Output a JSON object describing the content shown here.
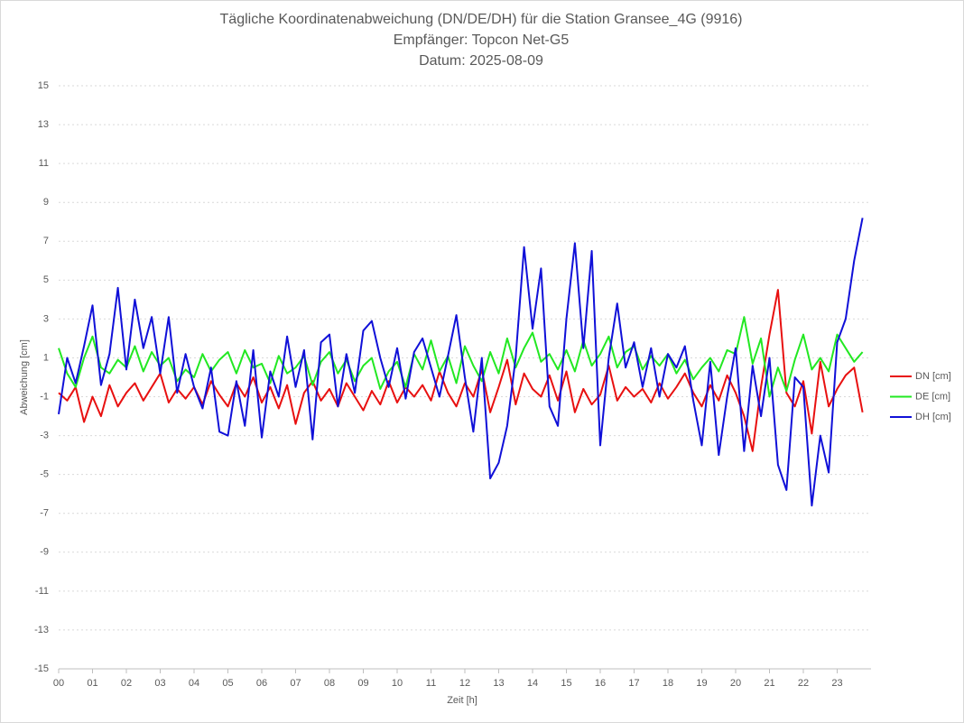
{
  "chart_data": {
    "type": "line",
    "title": "Tägliche Koordinatenabweichung (DN/DE/DH) für die Station Gransee_4G (9916)",
    "subtitle": [
      "Empfänger: Topcon Net-G5",
      "Datum: 2025-08-09"
    ],
    "xlabel": "Zeit [h]",
    "ylabel": "Abweichung [cm]",
    "x": [
      0,
      0.25,
      0.5,
      0.75,
      1,
      1.25,
      1.5,
      1.75,
      2,
      2.25,
      2.5,
      2.75,
      3,
      3.25,
      3.5,
      3.75,
      4,
      4.25,
      4.5,
      4.75,
      5,
      5.25,
      5.5,
      5.75,
      6,
      6.25,
      6.5,
      6.75,
      7,
      7.25,
      7.5,
      7.75,
      8,
      8.25,
      8.5,
      8.75,
      9,
      9.25,
      9.5,
      9.75,
      10,
      10.25,
      10.5,
      10.75,
      11,
      11.25,
      11.5,
      11.75,
      12,
      12.25,
      12.5,
      12.75,
      13,
      13.25,
      13.5,
      13.75,
      14,
      14.25,
      14.5,
      14.75,
      15,
      15.25,
      15.5,
      15.75,
      16,
      16.25,
      16.5,
      16.75,
      17,
      17.25,
      17.5,
      17.75,
      18,
      18.25,
      18.5,
      18.75,
      19,
      19.25,
      19.5,
      19.75,
      20,
      20.25,
      20.5,
      20.75,
      21,
      21.25,
      21.5,
      21.75,
      22,
      22.25,
      22.5,
      22.75,
      23,
      23.25,
      23.5,
      23.75
    ],
    "series": [
      {
        "name": "DN [cm]",
        "color": "#e81010",
        "values": [
          -0.8,
          -1.2,
          -0.5,
          -2.3,
          -1.0,
          -2.0,
          -0.4,
          -1.5,
          -0.8,
          -0.3,
          -1.2,
          -0.5,
          0.2,
          -1.3,
          -0.6,
          -1.1,
          -0.5,
          -1.4,
          -0.2,
          -0.9,
          -1.5,
          -0.3,
          -1.0,
          0.0,
          -1.3,
          -0.5,
          -1.6,
          -0.4,
          -2.4,
          -0.8,
          -0.2,
          -1.2,
          -0.6,
          -1.5,
          -0.3,
          -1.0,
          -1.7,
          -0.7,
          -1.4,
          -0.2,
          -1.3,
          -0.5,
          -1.0,
          -0.4,
          -1.2,
          0.3,
          -0.8,
          -1.5,
          -0.3,
          -1.0,
          0.4,
          -1.8,
          -0.5,
          0.9,
          -1.4,
          0.2,
          -0.6,
          -1.0,
          0.1,
          -1.2,
          0.3,
          -1.8,
          -0.6,
          -1.4,
          -0.9,
          0.6,
          -1.2,
          -0.5,
          -1.0,
          -0.6,
          -1.3,
          -0.3,
          -1.1,
          -0.5,
          0.2,
          -0.8,
          -1.5,
          -0.4,
          -1.2,
          0.1,
          -0.8,
          -2.0,
          -3.8,
          -0.5,
          2.2,
          4.5,
          -0.8,
          -1.5,
          -0.2,
          -2.9,
          0.8,
          -1.5,
          -0.6,
          0.1,
          0.5,
          -1.8
        ]
      },
      {
        "name": "DE [cm]",
        "color": "#22e822",
        "values": [
          1.5,
          0.2,
          -0.5,
          1.0,
          2.1,
          0.5,
          0.2,
          0.9,
          0.5,
          1.6,
          0.3,
          1.3,
          0.6,
          1.0,
          -0.2,
          0.4,
          0.0,
          1.2,
          0.3,
          0.9,
          1.3,
          0.2,
          1.4,
          0.5,
          0.7,
          -0.3,
          1.1,
          0.2,
          0.5,
          1.1,
          -0.4,
          0.8,
          1.3,
          0.2,
          0.9,
          -0.2,
          0.6,
          1.0,
          -0.6,
          0.3,
          0.8,
          -0.5,
          1.2,
          0.4,
          1.9,
          0.3,
          1.1,
          -0.3,
          1.6,
          0.6,
          -0.2,
          1.3,
          0.2,
          2.0,
          0.5,
          1.5,
          2.3,
          0.8,
          1.2,
          0.4,
          1.4,
          0.3,
          1.9,
          0.6,
          1.2,
          2.1,
          0.5,
          1.3,
          1.6,
          0.4,
          1.1,
          0.6,
          1.2,
          0.2,
          0.9,
          -0.1,
          0.5,
          1.0,
          0.3,
          1.4,
          1.2,
          3.1,
          0.7,
          2.0,
          -1.0,
          0.5,
          -0.7,
          0.9,
          2.2,
          0.4,
          1.0,
          0.3,
          2.2,
          1.5,
          0.8,
          1.3
        ]
      },
      {
        "name": "DH [cm]",
        "color": "#1010d8",
        "values": [
          -1.9,
          1.0,
          -0.3,
          1.6,
          3.7,
          -0.4,
          1.2,
          4.6,
          0.4,
          4.0,
          1.5,
          3.1,
          0.2,
          3.1,
          -0.8,
          1.2,
          -0.5,
          -1.6,
          0.5,
          -2.8,
          -3.0,
          -0.2,
          -2.5,
          1.4,
          -3.1,
          0.3,
          -1.0,
          2.1,
          -0.5,
          1.4,
          -3.2,
          1.8,
          2.2,
          -1.5,
          1.2,
          -0.8,
          2.4,
          2.9,
          1.0,
          -0.5,
          1.5,
          -1.1,
          1.3,
          2.0,
          0.5,
          -1.0,
          1.1,
          3.2,
          0.0,
          -2.8,
          1.0,
          -5.2,
          -4.4,
          -2.5,
          1.0,
          6.7,
          2.5,
          5.6,
          -1.5,
          -2.5,
          3.0,
          6.9,
          1.5,
          6.5,
          -3.5,
          1.0,
          3.8,
          0.5,
          1.8,
          -0.5,
          1.5,
          -1.0,
          1.2,
          0.5,
          1.6,
          -1.2,
          -3.5,
          0.8,
          -4.0,
          -1.0,
          1.5,
          -3.8,
          0.6,
          -2.0,
          1.0,
          -4.5,
          -5.8,
          0.0,
          -0.5,
          -6.6,
          -3.0,
          -4.9,
          1.8,
          3.0,
          6.0,
          8.2
        ]
      }
    ],
    "xlim": [
      0,
      24
    ],
    "xticks": [
      {
        "value": 0,
        "label": "00"
      },
      {
        "value": 1,
        "label": "01"
      },
      {
        "value": 2,
        "label": "02"
      },
      {
        "value": 3,
        "label": "03"
      },
      {
        "value": 4,
        "label": "04"
      },
      {
        "value": 5,
        "label": "05"
      },
      {
        "value": 6,
        "label": "06"
      },
      {
        "value": 7,
        "label": "07"
      },
      {
        "value": 8,
        "label": "08"
      },
      {
        "value": 9,
        "label": "09"
      },
      {
        "value": 10,
        "label": "10"
      },
      {
        "value": 11,
        "label": "11"
      },
      {
        "value": 12,
        "label": "12"
      },
      {
        "value": 13,
        "label": "13"
      },
      {
        "value": 14,
        "label": "14"
      },
      {
        "value": 15,
        "label": "15"
      },
      {
        "value": 16,
        "label": "16"
      },
      {
        "value": 17,
        "label": "17"
      },
      {
        "value": 18,
        "label": "18"
      },
      {
        "value": 19,
        "label": "19"
      },
      {
        "value": 20,
        "label": "20"
      },
      {
        "value": 21,
        "label": "21"
      },
      {
        "value": 22,
        "label": "22"
      },
      {
        "value": 23,
        "label": "23"
      }
    ],
    "ylim": [
      -15,
      15
    ],
    "yticks": [
      -15,
      -13,
      -11,
      -9,
      -7,
      -5,
      -3,
      -1,
      1,
      3,
      5,
      7,
      9,
      11,
      13,
      15
    ],
    "grid": true,
    "legend": "right"
  }
}
